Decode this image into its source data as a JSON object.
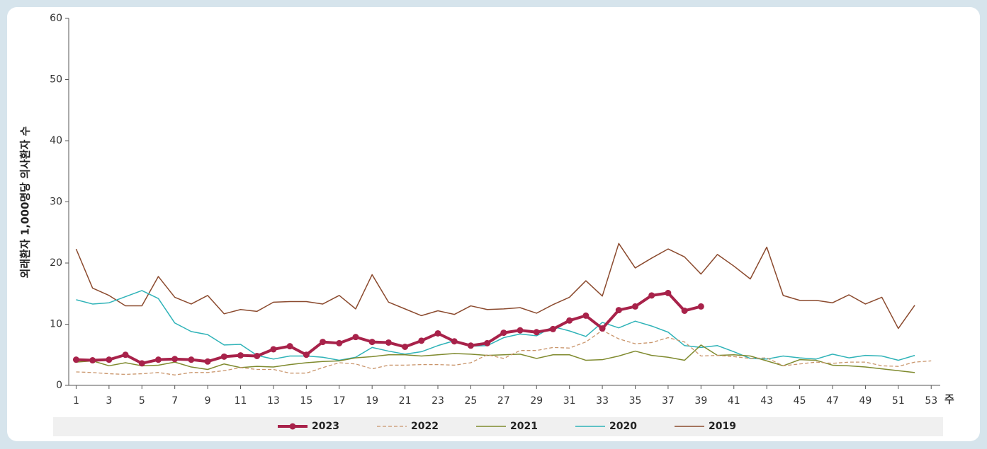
{
  "chart_data": {
    "type": "line",
    "y_label": "외래환자 1,000명당 의사환자 수",
    "x_unit": "주",
    "x": [
      1,
      2,
      3,
      4,
      5,
      6,
      7,
      8,
      9,
      10,
      11,
      12,
      13,
      14,
      15,
      16,
      17,
      18,
      19,
      20,
      21,
      22,
      23,
      24,
      25,
      26,
      27,
      28,
      29,
      30,
      31,
      32,
      33,
      34,
      35,
      36,
      37,
      38,
      39,
      40,
      41,
      42,
      43,
      44,
      45,
      46,
      47,
      48,
      49,
      50,
      51,
      52,
      53
    ],
    "xlim": [
      0.55,
      53.55
    ],
    "xticks": [
      1,
      3,
      5,
      7,
      9,
      11,
      13,
      15,
      17,
      19,
      21,
      23,
      25,
      27,
      29,
      31,
      33,
      35,
      37,
      39,
      41,
      43,
      45,
      47,
      49,
      51,
      53
    ],
    "ylim": [
      0,
      60
    ],
    "yticks": [
      0,
      10,
      20,
      30,
      40,
      50,
      60
    ],
    "grid": false,
    "legend": "bottom",
    "series": [
      {
        "name": "2023",
        "color": "#a8224a",
        "width": 4,
        "dashed": false,
        "markers": true,
        "values": [
          4.2,
          4.1,
          4.2,
          5.0,
          3.6,
          4.2,
          4.3,
          4.2,
          3.9,
          4.7,
          4.9,
          4.8,
          5.9,
          6.4,
          5.0,
          7.1,
          6.9,
          7.9,
          7.1,
          7.0,
          6.3,
          7.3,
          8.5,
          7.2,
          6.5,
          6.9,
          8.6,
          9.0,
          8.7,
          9.2,
          10.6,
          11.4,
          9.3,
          12.3,
          12.9,
          14.7,
          15.1,
          12.2,
          12.9,
          null,
          null,
          null,
          null,
          null,
          null,
          null,
          null,
          null,
          null,
          null,
          null,
          null,
          null
        ]
      },
      {
        "name": "2022",
        "color": "#c9956b",
        "width": 1.3,
        "dashed": true,
        "markers": false,
        "values": [
          2.2,
          2.1,
          1.9,
          1.8,
          1.9,
          2.1,
          1.7,
          2.1,
          2.1,
          2.4,
          2.9,
          2.6,
          2.6,
          2.0,
          2.0,
          2.9,
          3.7,
          3.5,
          2.7,
          3.3,
          3.3,
          3.4,
          3.4,
          3.3,
          3.7,
          5.0,
          4.4,
          5.7,
          5.7,
          6.2,
          6.1,
          7.1,
          9.0,
          7.6,
          6.8,
          7.0,
          7.8,
          7.1,
          4.8,
          4.9,
          4.7,
          4.4,
          4.5,
          3.2,
          3.5,
          3.8,
          3.6,
          3.8,
          3.8,
          3.2,
          3.1,
          3.8,
          4.0
        ]
      },
      {
        "name": "2021",
        "color": "#7f8a2e",
        "width": 1.5,
        "dashed": false,
        "markers": false,
        "values": [
          3.8,
          4.0,
          3.2,
          3.7,
          3.2,
          3.3,
          3.8,
          3.0,
          2.6,
          3.5,
          2.9,
          3.1,
          3.0,
          3.4,
          3.7,
          3.9,
          4.0,
          4.5,
          4.7,
          5.0,
          5.0,
          4.8,
          5.0,
          5.2,
          5.1,
          4.9,
          5.0,
          5.1,
          4.4,
          5.0,
          5.0,
          4.1,
          4.2,
          4.8,
          5.6,
          4.9,
          4.6,
          4.1,
          6.6,
          4.9,
          5.0,
          4.8,
          4.0,
          3.2,
          4.2,
          4.1,
          3.3,
          3.2,
          3.0,
          2.7,
          2.4,
          2.1,
          null
        ]
      },
      {
        "name": "2020",
        "color": "#2fb3b8",
        "width": 1.5,
        "dashed": false,
        "markers": false,
        "values": [
          14.0,
          13.3,
          13.5,
          14.5,
          15.5,
          14.2,
          10.2,
          8.8,
          8.3,
          6.6,
          6.7,
          4.9,
          4.3,
          4.8,
          4.8,
          4.6,
          4.1,
          4.6,
          6.2,
          5.6,
          5.1,
          5.5,
          6.5,
          7.3,
          6.4,
          6.5,
          7.8,
          8.4,
          8.1,
          9.6,
          8.9,
          8.0,
          10.3,
          9.4,
          10.5,
          9.7,
          8.7,
          6.5,
          6.2,
          6.5,
          5.5,
          4.4,
          4.3,
          4.8,
          4.5,
          4.3,
          5.1,
          4.5,
          4.9,
          4.8,
          4.1,
          4.9,
          null
        ]
      },
      {
        "name": "2019",
        "color": "#8b4a2e",
        "width": 1.5,
        "dashed": false,
        "markers": false,
        "values": [
          22.3,
          15.9,
          14.7,
          13.0,
          13.0,
          17.8,
          14.4,
          13.3,
          14.7,
          11.7,
          12.4,
          12.1,
          13.6,
          13.7,
          13.7,
          13.3,
          14.7,
          12.5,
          18.1,
          13.6,
          12.5,
          11.4,
          12.2,
          11.6,
          13.0,
          12.4,
          12.5,
          12.7,
          11.8,
          13.2,
          14.4,
          17.1,
          14.6,
          23.2,
          19.2,
          20.8,
          22.3,
          21.0,
          18.2,
          21.4,
          19.5,
          17.4,
          22.6,
          14.7,
          13.9,
          13.9,
          13.5,
          14.8,
          13.3,
          14.4,
          9.3,
          13.1,
          null
        ]
      }
    ]
  }
}
